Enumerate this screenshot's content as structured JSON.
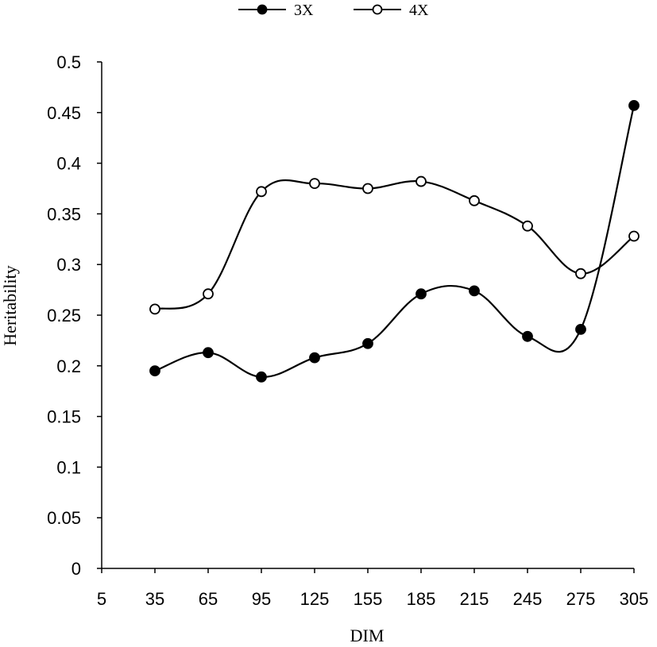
{
  "chart_data": {
    "type": "line",
    "title": "",
    "xlabel": "DIM",
    "ylabel": "Heritability",
    "x_ticks": [
      "5",
      "35",
      "65",
      "95",
      "125",
      "155",
      "185",
      "215",
      "245",
      "275",
      "305"
    ],
    "y_ticks": [
      "0",
      "0.05",
      "0.1",
      "0.15",
      "0.2",
      "0.25",
      "0.3",
      "0.35",
      "0.4",
      "0.45",
      "0.5"
    ],
    "xlim": [
      5,
      305
    ],
    "ylim": [
      0,
      0.5
    ],
    "grid": false,
    "legend_position": "top-center",
    "x": [
      35,
      65,
      95,
      125,
      155,
      185,
      215,
      245,
      275,
      305
    ],
    "series": [
      {
        "name": "3X",
        "marker": "filled-circle",
        "color": "#000000",
        "values": [
          0.195,
          0.213,
          0.189,
          0.208,
          0.222,
          0.271,
          0.274,
          0.229,
          0.236,
          0.457
        ]
      },
      {
        "name": "4X",
        "marker": "open-circle",
        "color": "#000000",
        "values": [
          0.256,
          0.271,
          0.372,
          0.38,
          0.375,
          0.382,
          0.363,
          0.338,
          0.291,
          0.328
        ]
      }
    ]
  }
}
